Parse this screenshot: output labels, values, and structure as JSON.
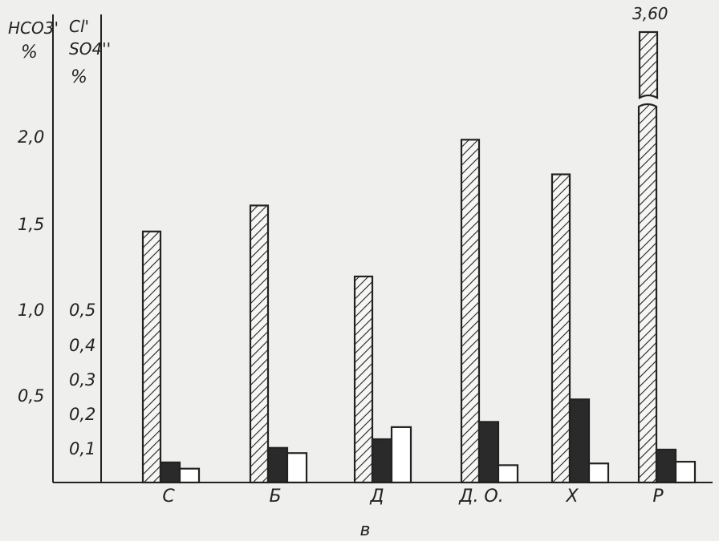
{
  "chart_data": {
    "type": "bar",
    "left_axis": {
      "label_line1": "HCO3'",
      "label_line2": "%",
      "ticks": [
        "0,5",
        "1,0",
        "1,5",
        "2,0"
      ],
      "tick_values": [
        0.5,
        1.0,
        1.5,
        2.0
      ]
    },
    "right_axis": {
      "label_line1": "Cl'",
      "label_line2": "SO4''",
      "label_line3": "%",
      "ticks": [
        "0,1",
        "0,2",
        "0,3",
        "0,4",
        "0,5"
      ],
      "tick_values": [
        0.1,
        0.2,
        0.3,
        0.4,
        0.5
      ]
    },
    "categories": [
      "С",
      "Б",
      "Д",
      "Д. О.",
      "Х",
      "Р"
    ],
    "series": [
      {
        "key": "hco3",
        "axis": "left",
        "fill": "hatch",
        "values": [
          1.45,
          1.6,
          1.19,
          1.98,
          1.78,
          3.6
        ]
      },
      {
        "key": "cl",
        "axis": "right",
        "fill": "#2a2a2a",
        "values": [
          0.058,
          0.1,
          0.125,
          0.175,
          0.24,
          0.095
        ]
      },
      {
        "key": "so4",
        "axis": "right",
        "fill": "#ffffff",
        "values": [
          0.04,
          0.085,
          0.16,
          0.05,
          0.055,
          0.06
        ]
      }
    ],
    "break_label": "3,60",
    "xlabel": "в"
  }
}
